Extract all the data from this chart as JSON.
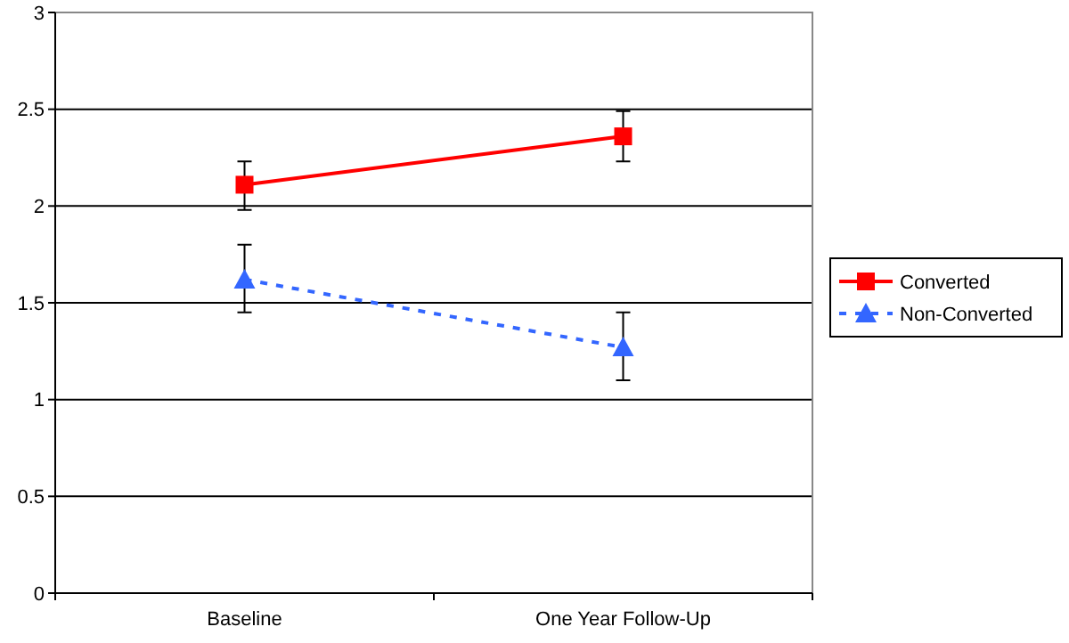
{
  "chart_data": {
    "type": "line",
    "categories": [
      "Baseline",
      "One Year Follow-Up"
    ],
    "series": [
      {
        "name": "Converted",
        "color": "#ff0000",
        "values": [
          2.11,
          2.36
        ],
        "errors": [
          [
            1.98,
            2.23
          ],
          [
            2.23,
            2.49
          ]
        ],
        "marker": "square",
        "line_style": "solid"
      },
      {
        "name": "Non-Converted",
        "color": "#3366ff",
        "values": [
          1.62,
          1.27
        ],
        "errors": [
          [
            1.45,
            1.8
          ],
          [
            1.1,
            1.45
          ]
        ],
        "marker": "triangle",
        "line_style": "dashed"
      }
    ],
    "ylim": [
      0,
      3
    ],
    "yticks": [
      0,
      0.5,
      1,
      1.5,
      2,
      2.5,
      3
    ],
    "grid": "y",
    "legend": "right"
  }
}
